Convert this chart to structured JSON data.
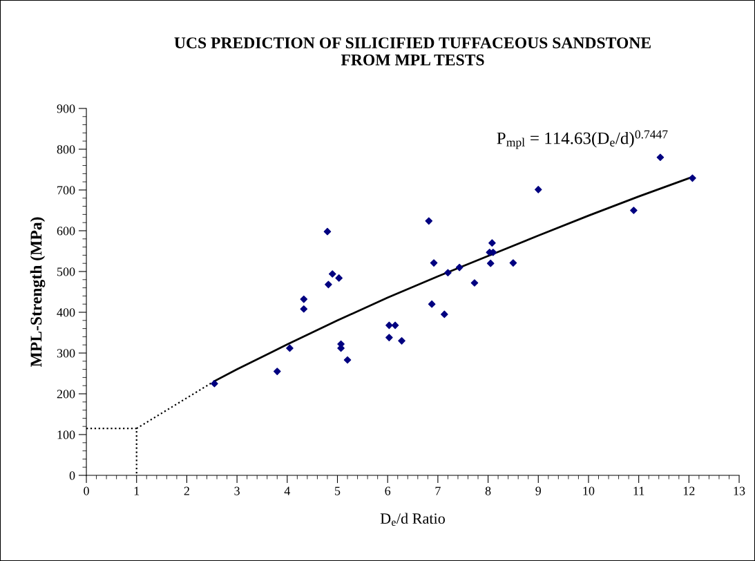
{
  "chart_data": {
    "type": "scatter",
    "title": "UCS PREDICTION OF SILICIFIED TUFFACEOUS SANDSTONE\nFROM MPL TESTS",
    "xlabel": "D$_{e}$/d Ratio",
    "ylabel": "MPL-Strength (MPa)",
    "annotations": [
      "P$_{mpl}$ = 114.63(D$_{e}$/d)$^{0.7447}$"
    ],
    "series": [
      {
        "color": "#000080",
        "marker": "diamond",
        "x": [
          2.55,
          3.8,
          4.05,
          4.33,
          4.33,
          4.8,
          4.82,
          4.9,
          5.03,
          5.07,
          5.07,
          5.2,
          6.03,
          6.03,
          6.15,
          6.28,
          6.82,
          6.88,
          6.92,
          7.13,
          7.2,
          7.43,
          7.73,
          8.03,
          8.1,
          8.08,
          8.05,
          8.5,
          9.0,
          10.9,
          11.43,
          12.07
        ],
        "values": [
          225,
          255,
          312,
          432,
          408,
          598,
          468,
          494,
          484,
          322,
          312,
          283,
          368,
          338,
          368,
          330,
          624,
          420,
          521,
          395,
          497,
          510,
          472,
          547,
          547,
          570,
          520,
          521,
          701,
          650,
          780,
          729
        ]
      },
      {
        "type": "line",
        "color": "#000000",
        "line_style": "solid",
        "x": [
          2.55,
          3,
          4,
          5,
          6,
          7,
          8,
          9,
          10,
          11,
          12.07
        ],
        "values": [
          231,
          260,
          321,
          380,
          436,
          488,
          538,
          588,
          637,
          684,
          732
        ]
      },
      {
        "type": "line",
        "color": "#000000",
        "line_style": "dotted",
        "x": [
          1,
          2.55
        ],
        "values": [
          115,
          231
        ]
      },
      {
        "type": "line",
        "color": "#000000",
        "line_style": "dotted",
        "x": [
          0,
          1,
          1
        ],
        "values": [
          115,
          115,
          0
        ]
      }
    ],
    "xlim": [
      0,
      13
    ],
    "xticks": [
      0,
      1,
      2,
      3,
      4,
      5,
      6,
      7,
      8,
      9,
      10,
      11,
      12,
      13
    ],
    "ylim": [
      0,
      900
    ],
    "yticks": [
      0,
      100,
      200,
      300,
      400,
      500,
      600,
      700,
      800,
      900
    ],
    "grid": false
  }
}
